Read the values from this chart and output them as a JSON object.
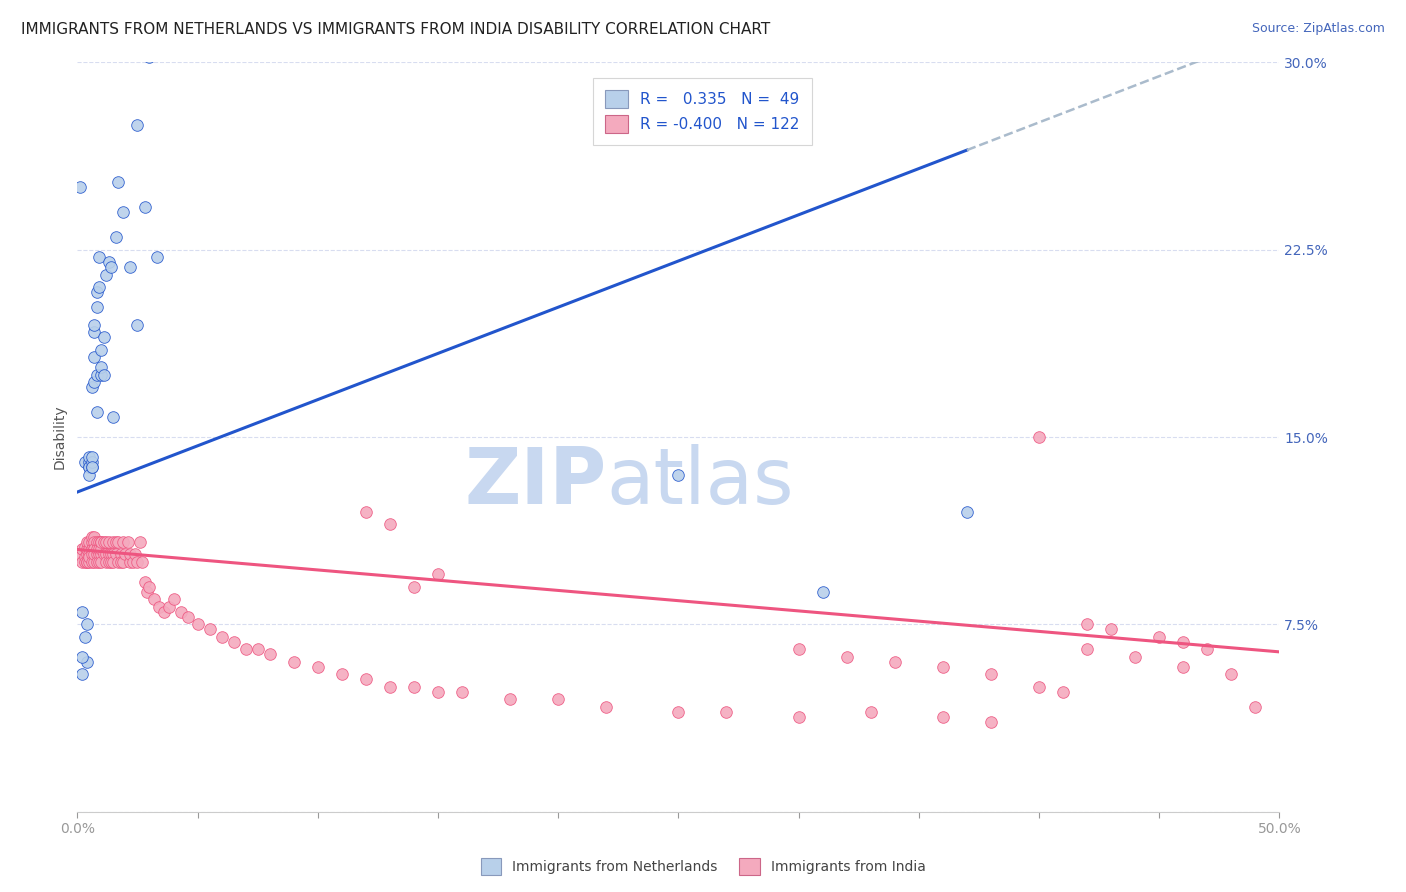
{
  "title": "IMMIGRANTS FROM NETHERLANDS VS IMMIGRANTS FROM INDIA DISABILITY CORRELATION CHART",
  "source": "Source: ZipAtlas.com",
  "ylabel": "Disability",
  "xlim": [
    0.0,
    0.5
  ],
  "ylim": [
    0.0,
    0.3
  ],
  "xticks": [
    0.0,
    0.05,
    0.1,
    0.15,
    0.2,
    0.25,
    0.3,
    0.35,
    0.4,
    0.45,
    0.5
  ],
  "xticklabels": [
    "0.0%",
    "",
    "",
    "",
    "",
    "",
    "",
    "",
    "",
    "",
    "50.0%"
  ],
  "yticks": [
    0.0,
    0.075,
    0.15,
    0.225,
    0.3
  ],
  "yticklabels": [
    "",
    "7.5%",
    "15.0%",
    "22.5%",
    "30.0%"
  ],
  "blue_R": 0.335,
  "blue_N": 49,
  "pink_R": -0.4,
  "pink_N": 122,
  "blue_color": "#b8d0ea",
  "pink_color": "#f4aabe",
  "blue_line_color": "#2255cc",
  "pink_line_color": "#ee5580",
  "watermark_zip": "ZIP",
  "watermark_atlas": "atlas",
  "watermark_color": "#c8d8f0",
  "background_color": "#ffffff",
  "grid_color": "#d8ddf0",
  "blue_trend_y_intercept": 0.128,
  "blue_trend_slope": 0.37,
  "blue_trend_solid_end": 0.37,
  "pink_trend_y_intercept": 0.105,
  "pink_trend_slope": -0.082,
  "title_fontsize": 11,
  "axis_label_fontsize": 10,
  "tick_fontsize": 10,
  "legend_fontsize": 11,
  "watermark_fontsize": 56,
  "tick_color": "#4466bb",
  "blue_points_x": [
    0.003,
    0.003,
    0.004,
    0.004,
    0.005,
    0.005,
    0.005,
    0.005,
    0.005,
    0.006,
    0.006,
    0.006,
    0.006,
    0.006,
    0.007,
    0.007,
    0.007,
    0.007,
    0.008,
    0.008,
    0.008,
    0.008,
    0.009,
    0.009,
    0.01,
    0.01,
    0.01,
    0.011,
    0.011,
    0.012,
    0.013,
    0.014,
    0.015,
    0.016,
    0.017,
    0.019,
    0.022,
    0.025,
    0.028,
    0.03,
    0.033,
    0.002,
    0.002,
    0.002,
    0.025,
    0.25,
    0.31,
    0.37,
    0.001
  ],
  "blue_points_y": [
    0.14,
    0.07,
    0.06,
    0.075,
    0.138,
    0.14,
    0.142,
    0.138,
    0.135,
    0.138,
    0.14,
    0.142,
    0.138,
    0.17,
    0.182,
    0.192,
    0.195,
    0.172,
    0.16,
    0.175,
    0.202,
    0.208,
    0.21,
    0.222,
    0.175,
    0.178,
    0.185,
    0.175,
    0.19,
    0.215,
    0.22,
    0.218,
    0.158,
    0.23,
    0.252,
    0.24,
    0.218,
    0.275,
    0.242,
    0.302,
    0.222,
    0.055,
    0.062,
    0.08,
    0.195,
    0.135,
    0.088,
    0.12,
    0.25
  ],
  "pink_points_x": [
    0.001,
    0.002,
    0.002,
    0.003,
    0.003,
    0.003,
    0.004,
    0.004,
    0.004,
    0.004,
    0.004,
    0.005,
    0.005,
    0.005,
    0.005,
    0.005,
    0.006,
    0.006,
    0.006,
    0.006,
    0.006,
    0.007,
    0.007,
    0.007,
    0.007,
    0.007,
    0.007,
    0.008,
    0.008,
    0.008,
    0.008,
    0.009,
    0.009,
    0.009,
    0.009,
    0.01,
    0.01,
    0.01,
    0.01,
    0.01,
    0.011,
    0.011,
    0.012,
    0.012,
    0.012,
    0.013,
    0.013,
    0.013,
    0.014,
    0.014,
    0.015,
    0.015,
    0.015,
    0.016,
    0.016,
    0.017,
    0.017,
    0.018,
    0.018,
    0.019,
    0.019,
    0.02,
    0.021,
    0.022,
    0.022,
    0.023,
    0.024,
    0.025,
    0.026,
    0.027,
    0.028,
    0.029,
    0.03,
    0.032,
    0.034,
    0.036,
    0.038,
    0.04,
    0.043,
    0.046,
    0.05,
    0.055,
    0.06,
    0.065,
    0.07,
    0.075,
    0.08,
    0.09,
    0.1,
    0.11,
    0.12,
    0.13,
    0.14,
    0.15,
    0.16,
    0.18,
    0.2,
    0.22,
    0.25,
    0.27,
    0.3,
    0.33,
    0.36,
    0.38,
    0.12,
    0.13,
    0.14,
    0.15,
    0.3,
    0.32,
    0.34,
    0.36,
    0.38,
    0.4,
    0.42,
    0.44,
    0.46,
    0.48,
    0.4,
    0.41,
    0.42,
    0.43,
    0.45,
    0.46,
    0.47,
    0.49
  ],
  "pink_points_y": [
    0.102,
    0.105,
    0.1,
    0.102,
    0.106,
    0.1,
    0.103,
    0.1,
    0.105,
    0.108,
    0.1,
    0.105,
    0.103,
    0.108,
    0.1,
    0.102,
    0.108,
    0.105,
    0.11,
    0.103,
    0.1,
    0.11,
    0.105,
    0.108,
    0.105,
    0.1,
    0.103,
    0.108,
    0.103,
    0.1,
    0.105,
    0.108,
    0.103,
    0.1,
    0.105,
    0.108,
    0.103,
    0.1,
    0.105,
    0.108,
    0.108,
    0.103,
    0.108,
    0.103,
    0.1,
    0.108,
    0.103,
    0.1,
    0.103,
    0.1,
    0.108,
    0.103,
    0.1,
    0.108,
    0.103,
    0.108,
    0.1,
    0.103,
    0.1,
    0.108,
    0.1,
    0.103,
    0.108,
    0.1,
    0.103,
    0.1,
    0.103,
    0.1,
    0.108,
    0.1,
    0.092,
    0.088,
    0.09,
    0.085,
    0.082,
    0.08,
    0.082,
    0.085,
    0.08,
    0.078,
    0.075,
    0.073,
    0.07,
    0.068,
    0.065,
    0.065,
    0.063,
    0.06,
    0.058,
    0.055,
    0.053,
    0.05,
    0.05,
    0.048,
    0.048,
    0.045,
    0.045,
    0.042,
    0.04,
    0.04,
    0.038,
    0.04,
    0.038,
    0.036,
    0.12,
    0.115,
    0.09,
    0.095,
    0.065,
    0.062,
    0.06,
    0.058,
    0.055,
    0.15,
    0.065,
    0.062,
    0.058,
    0.055,
    0.05,
    0.048,
    0.075,
    0.073,
    0.07,
    0.068,
    0.065,
    0.042
  ]
}
